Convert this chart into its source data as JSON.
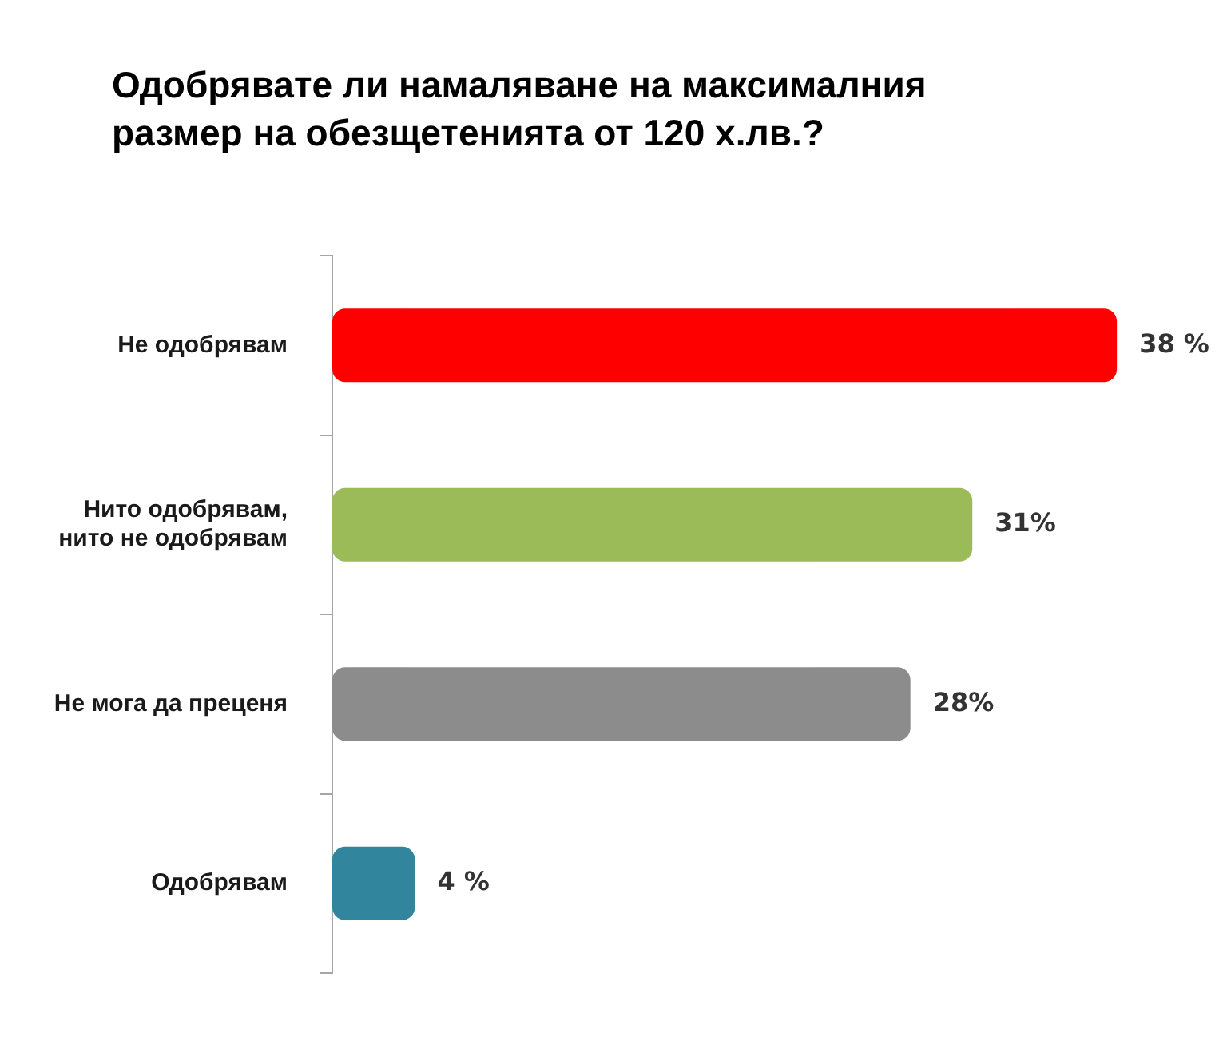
{
  "chart_data": {
    "type": "bar",
    "orientation": "horizontal",
    "title": "Одобрявате ли намаляване на максималния размер на обезщетенията от 120 х.лв.?",
    "categories": [
      "Не одобрявам",
      "Нито одобрявам, нито не одобрявам",
      "Не мога да преценя",
      "Одобрявам"
    ],
    "values": [
      38,
      31,
      28,
      4
    ],
    "colors": [
      "#ff0000",
      "#9bbb59",
      "#8c8c8c",
      "#31859c"
    ],
    "value_labels": [
      "38 %",
      "31%",
      "28%",
      "4 %"
    ]
  }
}
